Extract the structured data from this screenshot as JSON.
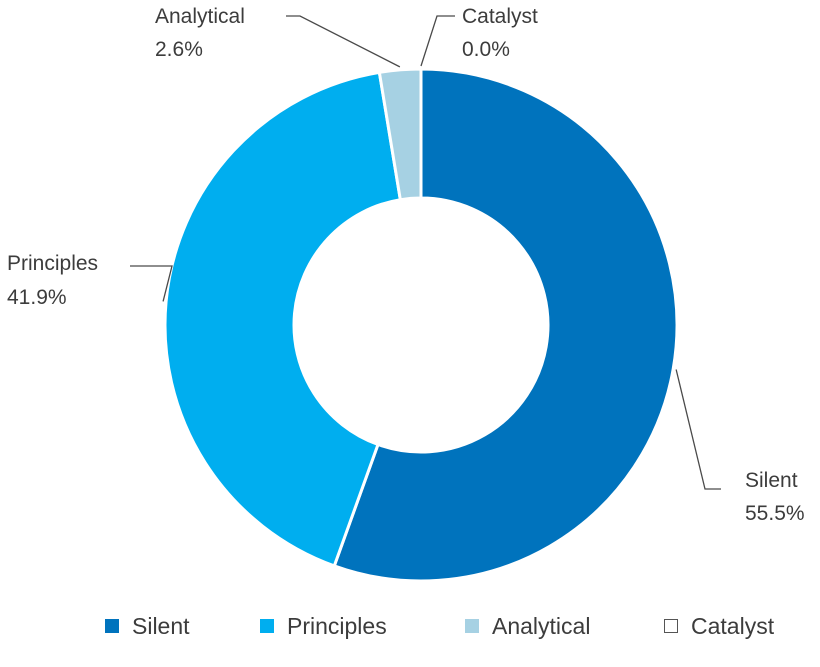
{
  "chart_data": {
    "type": "pie",
    "variant": "donut",
    "title": "",
    "categories": [
      "Silent",
      "Principles",
      "Analytical",
      "Catalyst"
    ],
    "values": [
      55.5,
      41.9,
      2.6,
      0.0
    ],
    "value_labels": [
      "55.5%",
      "41.9%",
      "2.6%",
      "0.0%"
    ],
    "colors": [
      "#0073bd",
      "#00aeef",
      "#a6d1e3",
      "#ffffff"
    ],
    "legend": {
      "placement": "bottom"
    }
  }
}
